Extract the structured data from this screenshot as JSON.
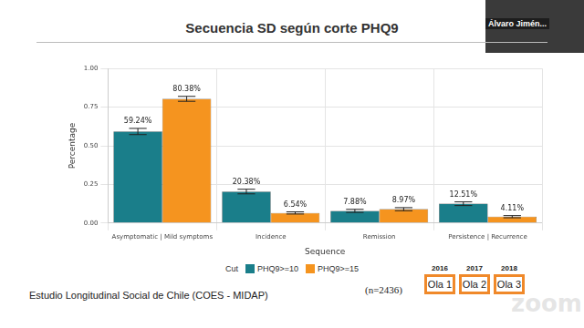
{
  "chart_data": {
    "type": "bar",
    "title": "Secuencia SD según corte PHQ9",
    "x_label": "Sequence",
    "y_label": "Percentage",
    "categories": [
      "Asymptomatic | Mild symptoms",
      "Incidence",
      "Remission",
      "Persistence | Recurrence"
    ],
    "series": [
      {
        "name": "PHQ9>=10",
        "color": "#1a7e8a",
        "values": [
          0.5924,
          0.2038,
          0.0788,
          0.1251
        ],
        "value_labels": [
          "59.24%",
          "20.38%",
          "7.88%",
          "12.51%"
        ],
        "errors": [
          0.02,
          0.015,
          0.01,
          0.012
        ]
      },
      {
        "name": "PHQ9>=15",
        "color": "#f5941f",
        "values": [
          0.8038,
          0.0654,
          0.0897,
          0.0411
        ],
        "value_labels": [
          "80.38%",
          "6.54%",
          "8.97%",
          "4.11%"
        ],
        "errors": [
          0.016,
          0.007,
          0.01,
          0.007
        ]
      }
    ],
    "ylim": [
      0,
      1
    ],
    "yticks": [
      {
        "value": 0,
        "label": "0.00"
      },
      {
        "value": 0.25,
        "label": "0.25"
      },
      {
        "value": 0.5,
        "label": "0.50"
      },
      {
        "value": 0.75,
        "label": "0.75"
      },
      {
        "value": 1,
        "label": "1.00"
      }
    ],
    "grid": true,
    "legend": "bottom",
    "legend_title": "Cut",
    "data_labels": true
  },
  "footer": "Estudio Longitudinal Social de Chile (COES - MIDAP)",
  "sample": "(n=2436)",
  "waves": [
    {
      "year": "2016",
      "label": "Ola 1"
    },
    {
      "year": "2017",
      "label": "Ola 2"
    },
    {
      "year": "2018",
      "label": "Ola 3"
    }
  ],
  "speaker": "Álvaro Jimén...",
  "watermark": "zoom"
}
